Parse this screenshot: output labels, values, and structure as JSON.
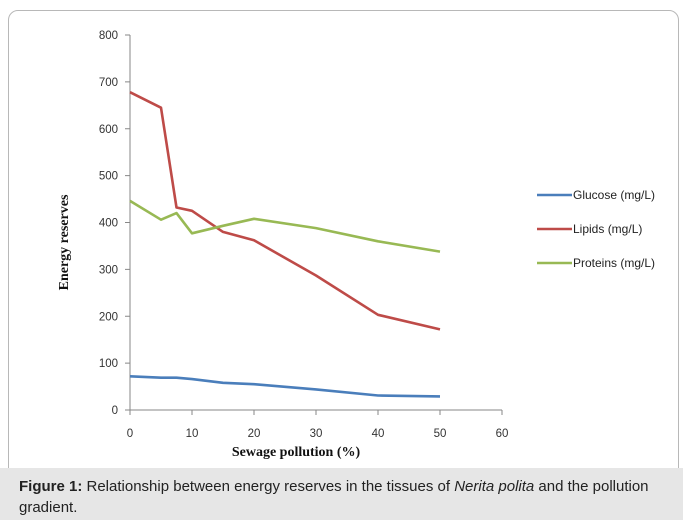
{
  "chart_data": {
    "type": "line",
    "xlabel": "Sewage pollution (%)",
    "ylabel": "Energy reserves",
    "xlim": [
      0,
      60
    ],
    "ylim": [
      0,
      800
    ],
    "x_ticks": [
      "0",
      "10",
      "20",
      "30",
      "40",
      "50",
      "60"
    ],
    "y_ticks": [
      "0",
      "100",
      "200",
      "300",
      "400",
      "500",
      "600",
      "700",
      "800"
    ],
    "grid": false,
    "legend_position": "right",
    "series": [
      {
        "name": "Glucose (mg/L)",
        "color": "#4a7ebb",
        "points": [
          [
            0,
            72
          ],
          [
            5,
            69
          ],
          [
            7.5,
            69
          ],
          [
            10,
            66
          ],
          [
            15,
            58
          ],
          [
            20,
            55
          ],
          [
            30,
            44
          ],
          [
            40,
            31
          ],
          [
            50,
            29
          ]
        ]
      },
      {
        "name": "Lipids (mg/L)",
        "color": "#be4b48",
        "points": [
          [
            0,
            678
          ],
          [
            5,
            645
          ],
          [
            7.5,
            432
          ],
          [
            10,
            425
          ],
          [
            15,
            380
          ],
          [
            20,
            362
          ],
          [
            30,
            287
          ],
          [
            40,
            203
          ],
          [
            50,
            172
          ]
        ]
      },
      {
        "name": "Proteins (mg/L)",
        "color": "#98b954",
        "points": [
          [
            0,
            446
          ],
          [
            5,
            406
          ],
          [
            7.5,
            420
          ],
          [
            10,
            377
          ],
          [
            15,
            393
          ],
          [
            20,
            408
          ],
          [
            30,
            388
          ],
          [
            40,
            360
          ],
          [
            50,
            338
          ]
        ]
      }
    ]
  },
  "caption": {
    "label": "Figure 1:",
    "text_before": " Relationship between energy reserves in the tissues of ",
    "species": "Nerita polita",
    "text_after": " and the pollution gradient."
  }
}
